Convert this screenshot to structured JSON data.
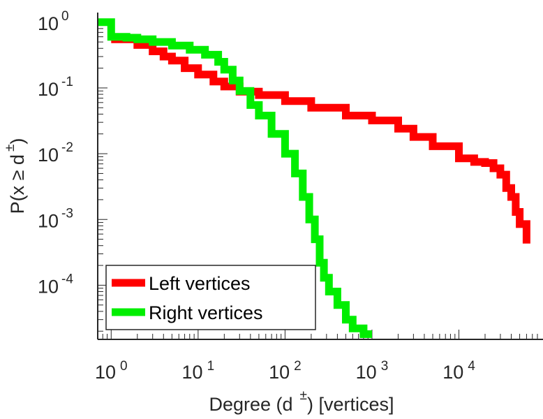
{
  "chart_data": {
    "type": "line",
    "title": "",
    "xlabel": {
      "main": "Degree (d",
      "sup": "±",
      "tail": ") [vertices]"
    },
    "ylabel": {
      "main": "P(x ≥ d",
      "sup": "±",
      "tail": ")"
    },
    "xscale": "log",
    "yscale": "log",
    "xlim": [
      0.7,
      80000
    ],
    "ylim": [
      1.5e-05,
      1.4
    ],
    "x_ticks": [
      {
        "value": 1,
        "base": "10",
        "exp": "0"
      },
      {
        "value": 10,
        "base": "10",
        "exp": "1"
      },
      {
        "value": 100,
        "base": "10",
        "exp": "2"
      },
      {
        "value": 1000,
        "base": "10",
        "exp": "3"
      },
      {
        "value": 10000,
        "base": "10",
        "exp": "4"
      }
    ],
    "y_ticks": [
      {
        "value": 1,
        "base": "10",
        "exp": "0"
      },
      {
        "value": 0.1,
        "base": "10",
        "exp": "-1"
      },
      {
        "value": 0.01,
        "base": "10",
        "exp": "-2"
      },
      {
        "value": 0.001,
        "base": "10",
        "exp": "-3"
      },
      {
        "value": 0.0001,
        "base": "10",
        "exp": "-4"
      }
    ],
    "grid": false,
    "legend": {
      "position": "bottom-left"
    },
    "series": [
      {
        "name": "Left vertices",
        "color": "#ff0000",
        "x": [
          1,
          2,
          3,
          4,
          5,
          7,
          10,
          15,
          20,
          30,
          50,
          100,
          200,
          500,
          1000,
          2000,
          3000,
          5000,
          10000,
          15000,
          20000,
          25000,
          30000,
          35000,
          40000,
          45000,
          50000,
          60000
        ],
        "y": [
          0.55,
          0.45,
          0.36,
          0.3,
          0.26,
          0.2,
          0.16,
          0.125,
          0.105,
          0.088,
          0.078,
          0.063,
          0.05,
          0.038,
          0.032,
          0.024,
          0.018,
          0.013,
          0.0085,
          0.0075,
          0.0072,
          0.006,
          0.0048,
          0.003,
          0.0022,
          0.0013,
          0.00085,
          0.00043
        ]
      },
      {
        "name": "Right vertices",
        "color": "#00ee00",
        "x": [
          0.7,
          1,
          1.5,
          2,
          3,
          5,
          8,
          12,
          17,
          20,
          25,
          30,
          40,
          50,
          70,
          100,
          130,
          160,
          190,
          220,
          250,
          280,
          320,
          400,
          500,
          600,
          800,
          1000
        ],
        "y": [
          1,
          0.6,
          0.58,
          0.55,
          0.5,
          0.44,
          0.38,
          0.32,
          0.25,
          0.19,
          0.13,
          0.09,
          0.055,
          0.038,
          0.02,
          0.01,
          0.005,
          0.0022,
          0.001,
          0.0005,
          0.00022,
          0.00013,
          8e-05,
          5e-05,
          3e-05,
          2.2e-05,
          1.8e-05,
          1.8e-05
        ]
      }
    ]
  }
}
